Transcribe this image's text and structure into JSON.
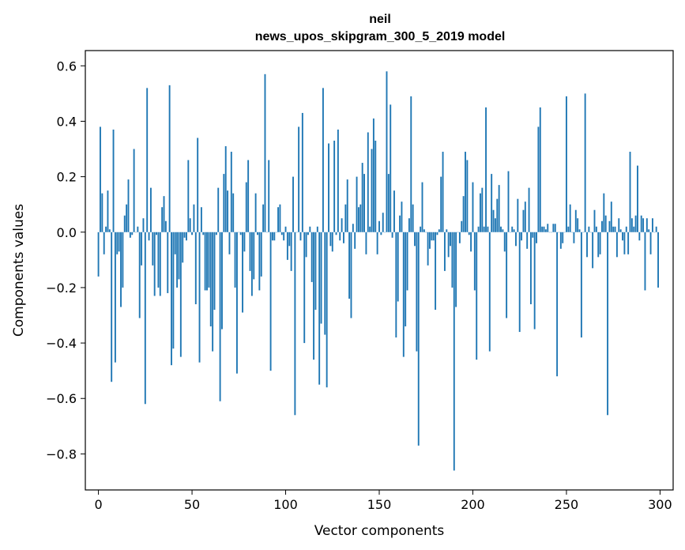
{
  "chart_data": {
    "type": "bar",
    "title": "neil",
    "subtitle": "news_upos_skipgram_300_5_2019 model",
    "xlabel": "Vector components",
    "ylabel": "Components values",
    "xlim": [
      -7,
      307
    ],
    "ylim": [
      -0.93,
      0.655
    ],
    "xticks": [
      0,
      50,
      100,
      150,
      200,
      250,
      300
    ],
    "yticks": [
      -0.8,
      -0.6,
      -0.4,
      -0.2,
      0.0,
      0.2,
      0.4,
      0.6
    ],
    "grid": false,
    "legend": "none",
    "bar_color": "#1f77b4",
    "values": [
      -0.16,
      0.38,
      0.14,
      -0.08,
      0.02,
      0.15,
      0.01,
      -0.54,
      0.37,
      -0.47,
      -0.08,
      -0.07,
      -0.27,
      -0.2,
      0.06,
      0.1,
      0.19,
      -0.02,
      -0.01,
      0.3,
      0.0,
      0.02,
      -0.31,
      -0.12,
      0.05,
      -0.62,
      0.52,
      -0.03,
      0.16,
      -0.12,
      -0.23,
      -0.01,
      -0.2,
      -0.23,
      0.09,
      0.13,
      0.04,
      -0.22,
      0.53,
      -0.48,
      -0.42,
      -0.08,
      -0.2,
      -0.17,
      -0.45,
      -0.11,
      -0.02,
      -0.03,
      0.26,
      0.05,
      -0.01,
      0.1,
      -0.26,
      0.34,
      -0.47,
      0.09,
      -0.01,
      -0.21,
      -0.21,
      -0.2,
      -0.34,
      -0.43,
      -0.28,
      -0.01,
      0.16,
      -0.61,
      -0.35,
      0.21,
      0.31,
      0.15,
      -0.08,
      0.29,
      0.14,
      -0.2,
      -0.51,
      0.0,
      -0.01,
      -0.29,
      -0.07,
      0.18,
      0.26,
      -0.14,
      -0.23,
      -0.17,
      0.14,
      -0.01,
      -0.21,
      -0.16,
      0.1,
      0.57,
      0.0,
      0.26,
      -0.5,
      -0.03,
      -0.03,
      0.0,
      0.09,
      0.1,
      -0.01,
      -0.03,
      0.02,
      -0.1,
      -0.05,
      -0.14,
      0.2,
      -0.66,
      0.0,
      0.38,
      -0.03,
      0.43,
      -0.4,
      -0.09,
      -0.01,
      0.02,
      -0.18,
      -0.46,
      -0.28,
      0.02,
      -0.55,
      -0.33,
      0.52,
      -0.37,
      -0.56,
      0.32,
      -0.05,
      -0.07,
      0.33,
      -0.01,
      0.37,
      -0.03,
      0.05,
      -0.04,
      0.1,
      0.19,
      -0.24,
      -0.31,
      0.03,
      -0.06,
      0.2,
      0.09,
      0.1,
      0.25,
      0.21,
      -0.08,
      0.36,
      0.02,
      0.3,
      0.41,
      0.33,
      -0.08,
      0.04,
      -0.01,
      0.07,
      0.0,
      0.58,
      0.21,
      0.46,
      -0.02,
      0.15,
      -0.38,
      -0.25,
      0.06,
      0.11,
      -0.45,
      -0.34,
      -0.21,
      0.05,
      0.49,
      0.1,
      -0.05,
      -0.43,
      -0.77,
      0.02,
      0.18,
      0.01,
      0.0,
      -0.12,
      -0.06,
      -0.03,
      -0.03,
      -0.28,
      -0.01,
      0.01,
      0.2,
      0.29,
      -0.14,
      0.01,
      -0.09,
      -0.05,
      -0.2,
      -0.86,
      -0.27,
      0.0,
      -0.04,
      0.04,
      0.13,
      0.29,
      0.26,
      -0.01,
      -0.07,
      0.18,
      -0.21,
      -0.46,
      0.02,
      0.14,
      0.16,
      0.02,
      0.45,
      0.02,
      -0.43,
      0.21,
      0.08,
      0.05,
      0.12,
      0.17,
      0.02,
      0.01,
      -0.07,
      -0.31,
      0.22,
      0.0,
      0.02,
      0.01,
      -0.05,
      0.12,
      -0.36,
      -0.03,
      0.08,
      0.11,
      -0.06,
      0.16,
      -0.26,
      -0.02,
      -0.35,
      -0.04,
      0.38,
      0.45,
      0.02,
      0.02,
      0.01,
      0.03,
      0.0,
      0.0,
      0.03,
      0.03,
      -0.52,
      0.0,
      -0.06,
      -0.04,
      0.0,
      0.49,
      0.02,
      0.1,
      0.0,
      -0.04,
      0.08,
      0.05,
      0.01,
      -0.38,
      0.0,
      0.5,
      -0.09,
      0.02,
      0.0,
      -0.13,
      0.08,
      0.02,
      -0.09,
      -0.08,
      0.04,
      0.14,
      0.06,
      -0.66,
      0.04,
      0.11,
      0.02,
      0.02,
      -0.09,
      0.05,
      0.01,
      -0.03,
      -0.08,
      0.02,
      -0.08,
      0.29,
      0.05,
      0.02,
      0.06,
      0.24,
      -0.03,
      0.06,
      0.05,
      -0.21,
      0.05,
      0.01,
      -0.08,
      0.05,
      0.0,
      0.02,
      -0.2
    ]
  }
}
